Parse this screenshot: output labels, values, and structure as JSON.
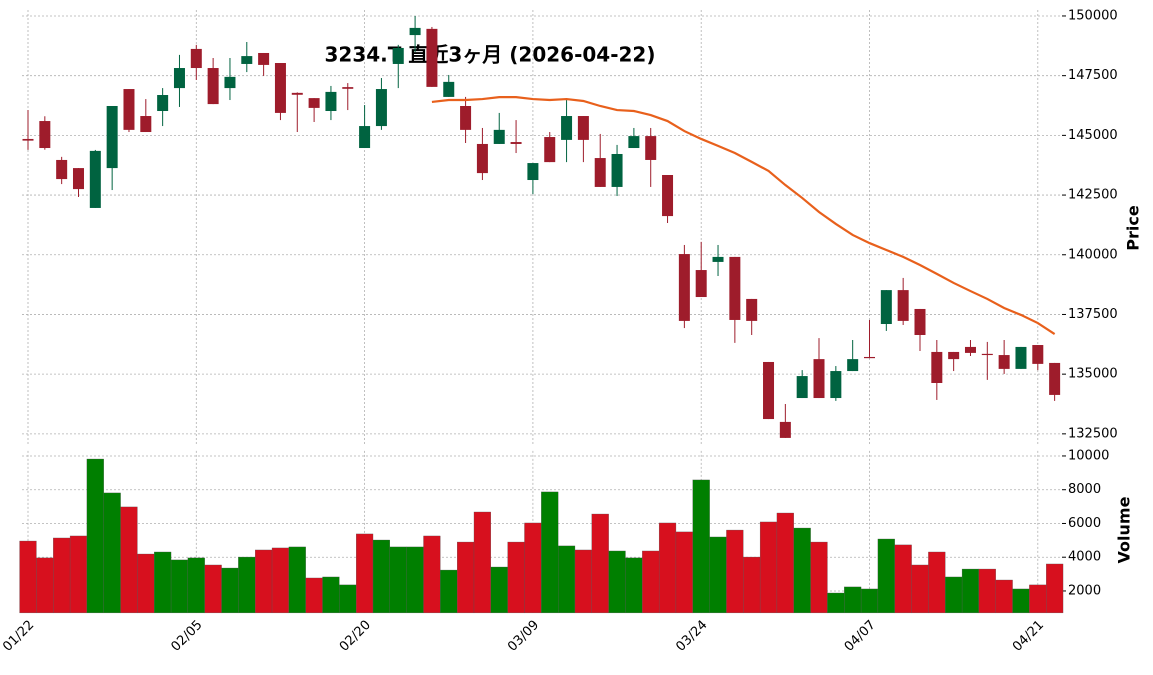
{
  "chart_data": {
    "type": "candlestick",
    "title": "3234.T  直近3ヶ月  (2026-04-22)",
    "categories": [
      "01/22",
      null,
      null,
      null,
      null,
      null,
      null,
      null,
      null,
      null,
      "02/05",
      null,
      null,
      null,
      null,
      null,
      null,
      null,
      null,
      null,
      "02/20",
      null,
      null,
      null,
      null,
      null,
      null,
      null,
      null,
      null,
      "03/09",
      null,
      null,
      null,
      null,
      null,
      null,
      null,
      null,
      null,
      "03/24",
      null,
      null,
      null,
      null,
      null,
      null,
      null,
      null,
      null,
      "04/07",
      null,
      null,
      null,
      null,
      null,
      null,
      null,
      null,
      null,
      "04/21",
      null
    ],
    "open": [
      144850,
      145600,
      143970,
      143630,
      141960,
      143630,
      146940,
      145810,
      146020,
      146980,
      148620,
      147820,
      146980,
      147990,
      148450,
      148030,
      146780,
      146560,
      146020,
      147020,
      144470,
      145390,
      147990,
      149200,
      149460,
      146610,
      146230,
      144640,
      144640,
      144720,
      143130,
      144930,
      144810,
      145810,
      144050,
      142840,
      144470,
      144970,
      143340,
      140030,
      139360,
      139700,
      139910,
      138150,
      135510,
      133000,
      134000,
      135630,
      134000,
      135130,
      135720,
      137100,
      138520,
      137730,
      135930,
      135930,
      136140,
      135850,
      135800,
      135220,
      136220,
      135470
    ],
    "high": [
      146060,
      145800,
      144100,
      143630,
      144390,
      146230,
      146940,
      146520,
      146980,
      148370,
      148790,
      148240,
      148240,
      148910,
      148450,
      148030,
      146800,
      146560,
      147070,
      147190,
      146270,
      147400,
      148790,
      150000,
      149540,
      147530,
      146610,
      145310,
      145940,
      145640,
      143840,
      145140,
      146480,
      145810,
      145060,
      144600,
      145310,
      145310,
      143340,
      140410,
      140540,
      140410,
      139910,
      138150,
      135510,
      133750,
      135170,
      136510,
      135340,
      136430,
      137270,
      138520,
      139030,
      137730,
      136430,
      135930,
      136430,
      136350,
      136430,
      136140,
      136220,
      135470
    ],
    "low": [
      144390,
      144400,
      142960,
      142420,
      141960,
      142710,
      145140,
      145140,
      145390,
      146190,
      147320,
      146310,
      146480,
      147650,
      147490,
      145640,
      145140,
      145560,
      145640,
      146060,
      144470,
      145230,
      146980,
      148490,
      147030,
      146610,
      144680,
      143130,
      144640,
      144260,
      142540,
      143880,
      143880,
      143880,
      142840,
      142460,
      144470,
      142840,
      141330,
      136930,
      138230,
      139110,
      136310,
      136640,
      133120,
      132330,
      134000,
      134000,
      133880,
      135130,
      135670,
      136810,
      137060,
      135970,
      133920,
      135130,
      135760,
      134760,
      135010,
      135220,
      135170,
      133880
    ],
    "close": [
      144780,
      144470,
      143170,
      142750,
      144350,
      146230,
      145230,
      145140,
      146690,
      147820,
      147820,
      146310,
      147450,
      148320,
      147950,
      145940,
      146700,
      146150,
      146820,
      146950,
      145390,
      146940,
      148660,
      149500,
      147030,
      147240,
      145230,
      143420,
      145230,
      144640,
      143840,
      143880,
      145810,
      144810,
      142840,
      144220,
      144970,
      143970,
      141620,
      137230,
      138230,
      139910,
      137270,
      137230,
      133120,
      132330,
      134920,
      134000,
      135130,
      135630,
      135670,
      138520,
      137230,
      136640,
      134630,
      135630,
      135890,
      135800,
      135220,
      136140,
      135430,
      134130
    ],
    "up_color": "#006340",
    "down_color": "#9e1c2b",
    "moving_average": {
      "color": "#e8601c",
      "values": [
        null,
        null,
        null,
        null,
        null,
        null,
        null,
        null,
        null,
        null,
        null,
        null,
        null,
        null,
        null,
        null,
        null,
        null,
        null,
        null,
        null,
        null,
        null,
        null,
        146400,
        146480,
        146480,
        146520,
        146600,
        146600,
        146520,
        146480,
        146520,
        146440,
        146230,
        146060,
        146020,
        145850,
        145600,
        145180,
        144850,
        144560,
        144260,
        143890,
        143510,
        142920,
        142380,
        141790,
        141290,
        140830,
        140490,
        140200,
        139910,
        139570,
        139200,
        138820,
        138480,
        138150,
        137770,
        137480,
        137140,
        136680
      ]
    },
    "ylim": [
      132050,
      150250
    ],
    "yticks": [
      132500,
      135000,
      137500,
      140000,
      142500,
      145000,
      147500,
      150000
    ],
    "ylabel": "Price",
    "volume": {
      "values": [
        4960,
        3960,
        5140,
        5260,
        9820,
        7810,
        6980,
        4190,
        4310,
        3840,
        3960,
        3540,
        3360,
        4010,
        4430,
        4550,
        4610,
        2770,
        2830,
        2360,
        5380,
        5020,
        4610,
        4610,
        5260,
        3240,
        4900,
        6680,
        3420,
        4900,
        6030,
        7870,
        4670,
        4430,
        6560,
        4370,
        3960,
        4370,
        6030,
        5500,
        8580,
        5200,
        5610,
        4010,
        6090,
        6620,
        5730,
        4900,
        1880,
        2240,
        2120,
        5080,
        4730,
        3540,
        4310,
        2830,
        3300,
        3300,
        2650,
        2120,
        2360,
        3600
      ],
      "up_color": "#007f00",
      "down_color": "#d7101e",
      "ylim": [
        700,
        10300
      ],
      "yticks": [
        2000,
        4000,
        6000,
        8000,
        10000
      ],
      "ylabel": "Volume"
    },
    "grid": true
  }
}
